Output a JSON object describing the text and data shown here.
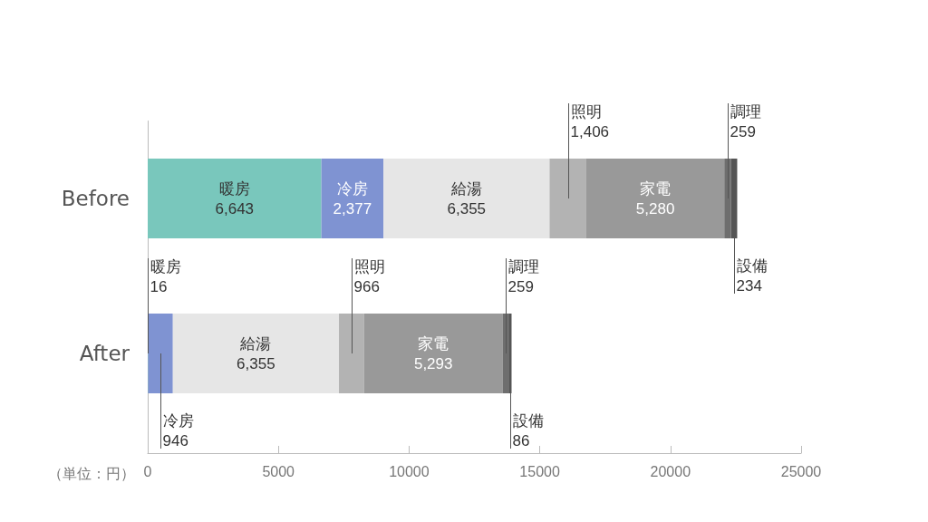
{
  "chart_data": {
    "type": "bar",
    "orientation": "horizontal",
    "stacked": true,
    "categories": [
      "Before",
      "After"
    ],
    "xlim": [
      0,
      25000
    ],
    "xticks": [
      0,
      5000,
      10000,
      15000,
      20000,
      25000
    ],
    "annotations": [
      "（単位：円）"
    ],
    "series": [
      {
        "name": "暖房",
        "color": "#79c7bc",
        "values": [
          6643,
          16
        ],
        "value_labels": [
          "6,643",
          "16"
        ]
      },
      {
        "name": "冷房",
        "color": "#7f93d2",
        "values": [
          2377,
          946
        ],
        "value_labels": [
          "2,377",
          "946"
        ]
      },
      {
        "name": "給湯",
        "color": "#e6e6e6",
        "values": [
          6355,
          6355
        ],
        "value_labels": [
          "6,355",
          "6,355"
        ]
      },
      {
        "name": "照明",
        "color": "#b3b3b3",
        "values": [
          1406,
          966
        ],
        "value_labels": [
          "1,406",
          "966"
        ]
      },
      {
        "name": "家電",
        "color": "#999999",
        "values": [
          5280,
          5293
        ],
        "value_labels": [
          "5,280",
          "5,293"
        ]
      },
      {
        "name": "調理",
        "color": "#6e6e6e",
        "values": [
          259,
          259
        ],
        "value_labels": [
          "259",
          "259"
        ]
      },
      {
        "name": "設備",
        "color": "#555555",
        "values": [
          234,
          86
        ],
        "value_labels": [
          "234",
          "86"
        ]
      }
    ]
  }
}
